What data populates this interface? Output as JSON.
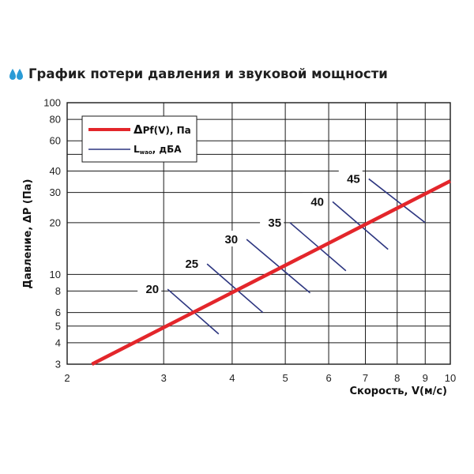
{
  "title": "График потери давления и звуковой мощности",
  "colors": {
    "accent_icon": "#2a9bd6",
    "pressure_line": "#e3262b",
    "sound_lines": "#2d3680",
    "grid": "#1a1a1a",
    "text": "#111111"
  },
  "chart_data": {
    "type": "line",
    "title": "График потери давления и звуковой мощности",
    "xlabel": "Скорость, V(м/с)",
    "ylabel": "Давление, ΔP (Па)",
    "x_scale": "log",
    "y_scale": "log",
    "xlim": [
      2,
      10
    ],
    "ylim": [
      3,
      100
    ],
    "x_ticks": [
      2,
      3,
      4,
      5,
      6,
      7,
      8,
      9,
      10
    ],
    "y_ticks": [
      3,
      4,
      5,
      6,
      8,
      10,
      20,
      30,
      40,
      60,
      80,
      100
    ],
    "y_grid": [
      3,
      4,
      5,
      6,
      8,
      10,
      20,
      30,
      40,
      50,
      60,
      80,
      100
    ],
    "grid": true,
    "legend": {
      "position": "top-left",
      "entries": [
        {
          "key": "pressure",
          "prefix": "Δ",
          "main": "Pf(V), Па",
          "color": "#e3262b"
        },
        {
          "key": "sound",
          "prefix": "L",
          "sub": "wao",
          "suffix": ", дБА",
          "color": "#2d3680"
        }
      ]
    },
    "series": [
      {
        "key": "pressure",
        "color": "#e3262b",
        "points": [
          {
            "x": 2.22,
            "y": 3.0
          },
          {
            "x": 10,
            "y": 35
          }
        ]
      }
    ],
    "sound_levels": [
      {
        "label": "20",
        "start": {
          "x": 3.05,
          "y": 8.2
        },
        "end": {
          "x": 3.78,
          "y": 4.5
        }
      },
      {
        "label": "25",
        "start": {
          "x": 3.6,
          "y": 11.5
        },
        "end": {
          "x": 4.55,
          "y": 6.0
        }
      },
      {
        "label": "30",
        "start": {
          "x": 4.25,
          "y": 16.0
        },
        "end": {
          "x": 5.55,
          "y": 7.8
        }
      },
      {
        "label": "35",
        "start": {
          "x": 5.1,
          "y": 20.0
        },
        "end": {
          "x": 6.45,
          "y": 10.5
        }
      },
      {
        "label": "40",
        "start": {
          "x": 6.1,
          "y": 26.5
        },
        "end": {
          "x": 7.7,
          "y": 14.0
        }
      },
      {
        "label": "45",
        "start": {
          "x": 7.1,
          "y": 36.0
        },
        "end": {
          "x": 9.0,
          "y": 20.0
        }
      }
    ]
  }
}
